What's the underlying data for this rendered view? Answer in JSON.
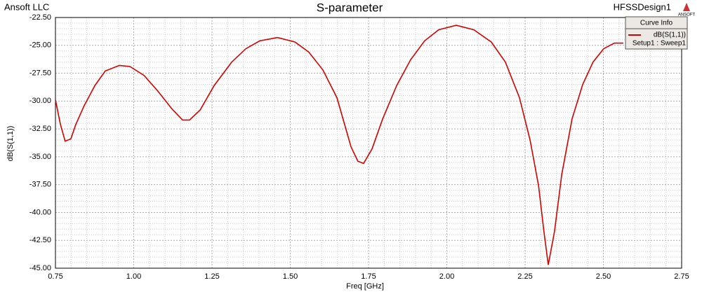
{
  "company": "Ansoft LLC",
  "design": "HFSSDesign1",
  "logo": "ANSOFT",
  "chart_data": {
    "type": "line",
    "title": "S-parameter",
    "x_label": "Freq [GHz]",
    "y_label": "dB(S(1,1))",
    "legend_title": "Curve Info",
    "legend_subtitle": "Setup1 : Sweep1",
    "x": [
      0.75,
      0.766,
      0.781,
      0.799,
      0.815,
      0.842,
      0.876,
      0.909,
      0.954,
      0.988,
      1.033,
      1.077,
      1.122,
      1.156,
      1.178,
      1.212,
      1.257,
      1.313,
      1.358,
      1.402,
      1.459,
      1.515,
      1.559,
      1.604,
      1.649,
      1.694,
      1.716,
      1.734,
      1.761,
      1.795,
      1.84,
      1.884,
      1.929,
      1.974,
      2.03,
      2.086,
      2.142,
      2.187,
      2.232,
      2.266,
      2.293,
      2.31,
      2.324,
      2.344,
      2.367,
      2.4,
      2.434,
      2.467,
      2.501,
      2.535,
      2.564
    ],
    "series": [
      {
        "name": "dB(S(1,1))",
        "color": "#d40000",
        "values": [
          -29.9,
          -32.1,
          -33.6,
          -33.4,
          -32.1,
          -30.4,
          -28.6,
          -27.3,
          -26.8,
          -26.9,
          -27.7,
          -29.1,
          -30.7,
          -31.7,
          -31.7,
          -30.8,
          -28.6,
          -26.5,
          -25.3,
          -24.6,
          -24.3,
          -24.7,
          -25.6,
          -27.2,
          -29.7,
          -34.1,
          -35.4,
          -35.6,
          -34.3,
          -31.6,
          -28.6,
          -26.3,
          -24.6,
          -23.6,
          -23.2,
          -23.6,
          -24.7,
          -26.5,
          -29.7,
          -33.5,
          -37.6,
          -41.7,
          -44.7,
          -41.7,
          -36.6,
          -31.6,
          -28.5,
          -26.5,
          -25.3,
          -24.8,
          -24.8
        ]
      }
    ],
    "xlim": [
      0.75,
      2.75
    ],
    "xticks": [
      {
        "value": 0.75,
        "label": "0.75"
      },
      {
        "value": 1.0,
        "label": "1.00"
      },
      {
        "value": 1.25,
        "label": "1.25"
      },
      {
        "value": 1.5,
        "label": "1.50"
      },
      {
        "value": 1.75,
        "label": "1.75"
      },
      {
        "value": 2.0,
        "label": "2.00"
      },
      {
        "value": 2.25,
        "label": "2.25"
      },
      {
        "value": 2.5,
        "label": "2.50"
      },
      {
        "value": 2.75,
        "label": "2.75"
      }
    ],
    "ylim": [
      -45,
      -22.5
    ],
    "yticks": [
      {
        "value": -22.5,
        "label": "-22.50"
      },
      {
        "value": -25,
        "label": "-25.00"
      },
      {
        "value": -27.5,
        "label": "-27.50"
      },
      {
        "value": -30,
        "label": "-30.00"
      },
      {
        "value": -32.5,
        "label": "-32.50"
      },
      {
        "value": -35,
        "label": "-35.00"
      },
      {
        "value": -37.5,
        "label": "-37.50"
      },
      {
        "value": -40,
        "label": "-40.00"
      },
      {
        "value": -42.5,
        "label": "-42.50"
      },
      {
        "value": -45,
        "label": "-45.00"
      }
    ],
    "grid": true
  }
}
